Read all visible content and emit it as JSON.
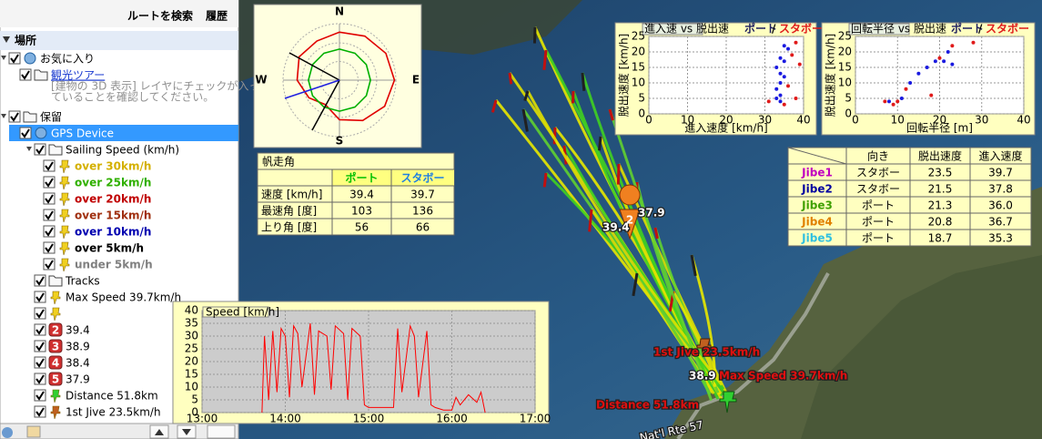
{
  "toolbar": {
    "route": "ルートを検索",
    "history": "履歴"
  },
  "places": {
    "title": "場所",
    "tree": [
      {
        "label": "お気に入り",
        "icon": "globe",
        "children": [
          {
            "label": "観光ツアー",
            "icon": "folder",
            "link": true,
            "note": [
              "[建物の 3D 表示] レイヤにチェックが入っ",
              "ていることを確認してください。"
            ]
          }
        ]
      },
      {
        "label": "保留",
        "icon": "folder",
        "children": [
          {
            "label": "GPS Device",
            "icon": "globe",
            "selected": true,
            "children": [
              {
                "label": "Sailing Speed (km/h)",
                "icon": "folder",
                "children": [
                  {
                    "label": "over 30km/h",
                    "icon": "pin",
                    "color": "#d4b000"
                  },
                  {
                    "label": "over 25km/h",
                    "icon": "pin",
                    "color": "#30b000"
                  },
                  {
                    "label": "over 20km/h",
                    "icon": "pin",
                    "color": "#c00000"
                  },
                  {
                    "label": "over 15km/h",
                    "icon": "pin",
                    "color": "#a03010"
                  },
                  {
                    "label": "over 10km/h",
                    "icon": "pin",
                    "color": "#0000b0"
                  },
                  {
                    "label": "over 5km/h",
                    "icon": "pin",
                    "color": "#000000"
                  },
                  {
                    "label": "under 5km/h",
                    "icon": "pin",
                    "color": "#808080"
                  }
                ]
              },
              {
                "label": "Tracks",
                "icon": "folder"
              },
              {
                "label": "Max Speed 39.7km/h",
                "icon": "pin"
              },
              {
                "icon": "pin"
              },
              {
                "label": "39.4",
                "badge": "2"
              },
              {
                "label": "38.9",
                "badge": "3"
              },
              {
                "label": "38.4",
                "badge": "4"
              },
              {
                "label": "37.9",
                "badge": "5"
              },
              {
                "label": "Distance 51.8km",
                "icon": "pin-green"
              },
              {
                "label": "1st Jive 23.5km/h",
                "icon": "pin-brown"
              }
            ]
          }
        ]
      }
    ]
  },
  "polar_chart": {
    "type": "polar",
    "labels": {
      "n": "N",
      "s": "S",
      "w": "W",
      "e": "E"
    },
    "angles": [
      0,
      30,
      60,
      90,
      120,
      150,
      180,
      210,
      240,
      270,
      300,
      330
    ],
    "rlim": [
      0,
      40
    ],
    "series": [
      {
        "color": "#e00000",
        "values": [
          34,
          36,
          38,
          39,
          37,
          33,
          28,
          20,
          25,
          30,
          33,
          32
        ]
      },
      {
        "color": "#00b000",
        "values": [
          22,
          22,
          22,
          22,
          22,
          22,
          22,
          22,
          22,
          22,
          22,
          22
        ]
      }
    ]
  },
  "sail_table": {
    "title": "帆走角",
    "columns": [
      {
        "text": "ポート",
        "color": "#00c000"
      },
      {
        "text": "スタボー",
        "color": "#2080e0"
      }
    ],
    "rows": [
      [
        "速度 [km/h]",
        "39.4",
        "39.7"
      ],
      [
        "最速角 [度]",
        "103",
        "136"
      ],
      [
        "上り角 [度]",
        "56",
        "66"
      ]
    ]
  },
  "speed_chart": {
    "type": "line",
    "legend": "Speed [km/h]",
    "color": "#ff0000",
    "x": [
      13.72,
      13.75,
      13.8,
      13.85,
      13.9,
      13.95,
      14.0,
      14.05,
      14.1,
      14.15,
      14.2,
      14.3,
      14.35,
      14.4,
      14.5,
      14.55,
      14.6,
      14.7,
      14.75,
      14.8,
      14.9,
      14.95,
      15.0,
      15.3,
      15.35,
      15.4,
      15.5,
      15.55,
      15.6,
      15.7,
      15.75,
      15.8,
      15.9,
      16.0,
      16.05,
      16.1,
      16.2,
      16.3,
      16.35,
      16.4
    ],
    "values": [
      0,
      30,
      5,
      32,
      8,
      33,
      30,
      6,
      34,
      31,
      10,
      35,
      7,
      32,
      30,
      9,
      34,
      31,
      5,
      33,
      30,
      3,
      2,
      2,
      33,
      8,
      34,
      30,
      6,
      32,
      3,
      2,
      1,
      1,
      6,
      3,
      7,
      4,
      8,
      0
    ],
    "xlim": [
      13,
      17
    ],
    "xticks": [
      {
        "value": 13,
        "label": "13:00"
      },
      {
        "value": 14,
        "label": "14:00"
      },
      {
        "value": 15,
        "label": "15:00"
      },
      {
        "value": 16,
        "label": "16:00"
      },
      {
        "value": 17,
        "label": "17:00"
      }
    ],
    "ylim": [
      0,
      40
    ],
    "yticks": [
      0,
      5,
      10,
      15,
      20,
      25,
      30,
      35,
      40
    ],
    "grid": true
  },
  "scatter_charts": [
    {
      "type": "scatter",
      "title": "進入速 vs 脱出速",
      "legend_separator": "/",
      "xlabel": "進入速度 [km/h]",
      "ylabel": "脱出速度 [km/h]",
      "xlim": [
        0,
        40
      ],
      "xticks": [
        0,
        10,
        20,
        30,
        40
      ],
      "ylim": [
        0,
        25
      ],
      "yticks": [
        0,
        5,
        10,
        15,
        20,
        25
      ],
      "grid": true,
      "series": [
        {
          "name": "ポート",
          "color": "#1a1ae0",
          "x": [
            35,
            36,
            34,
            35,
            33,
            34,
            35,
            34,
            33,
            34,
            33,
            34
          ],
          "y": [
            22,
            21,
            18,
            17,
            15,
            13,
            12,
            10,
            8,
            6,
            5,
            4
          ]
        },
        {
          "name": "スタボー",
          "color": "#e01a1a",
          "x": [
            38,
            37,
            39,
            31,
            36,
            38,
            35
          ],
          "y": [
            23,
            19,
            16,
            4,
            9,
            5,
            3
          ]
        }
      ]
    },
    {
      "type": "scatter",
      "title": "回転半径 vs 脱出速",
      "legend_separator": "/",
      "xlabel": "回転半径 [m]",
      "ylabel": "脱出速度 [km/h]",
      "xlim": [
        0,
        40
      ],
      "xticks": [
        0,
        10,
        20,
        30,
        40
      ],
      "ylim": [
        0,
        25
      ],
      "yticks": [
        0,
        5,
        10,
        15,
        20,
        25
      ],
      "grid": true,
      "series": [
        {
          "name": "ポート",
          "color": "#1a1ae0",
          "x": [
            8,
            11,
            13,
            15,
            17,
            19,
            21,
            22,
            23
          ],
          "y": [
            4,
            5,
            10,
            13,
            15,
            17,
            17,
            20,
            16
          ]
        },
        {
          "name": "スタボー",
          "color": "#e01a1a",
          "x": [
            7,
            9,
            10,
            12,
            18,
            20,
            23,
            28
          ],
          "y": [
            4,
            3,
            4,
            8,
            6,
            18,
            22,
            23
          ]
        }
      ]
    }
  ],
  "jibe_table": {
    "columns": [
      "向き",
      "脱出速度",
      "進入速度"
    ],
    "rows": [
      {
        "name": "Jibe1",
        "color": "#c000c0",
        "cells": [
          "スタボー",
          "23.5",
          "39.7"
        ]
      },
      {
        "name": "Jibe2",
        "color": "#0000a0",
        "cells": [
          "スタボー",
          "21.5",
          "37.8"
        ]
      },
      {
        "name": "Jibe3",
        "color": "#40a000",
        "cells": [
          "ポート",
          "21.3",
          "36.0"
        ]
      },
      {
        "name": "Jibe4",
        "color": "#e08000",
        "cells": [
          "ポート",
          "20.8",
          "36.7"
        ]
      },
      {
        "name": "Jibe5",
        "color": "#30c0e0",
        "cells": [
          "ポート",
          "18.7",
          "35.3"
        ]
      }
    ]
  },
  "map_labels": [
    "37.9",
    "39.4",
    "1st Jive 23.5km/h",
    "38.9",
    "Max Speed 39.7km/h",
    "Distance 51.8km",
    "2",
    "Nat'l Rte 57"
  ]
}
